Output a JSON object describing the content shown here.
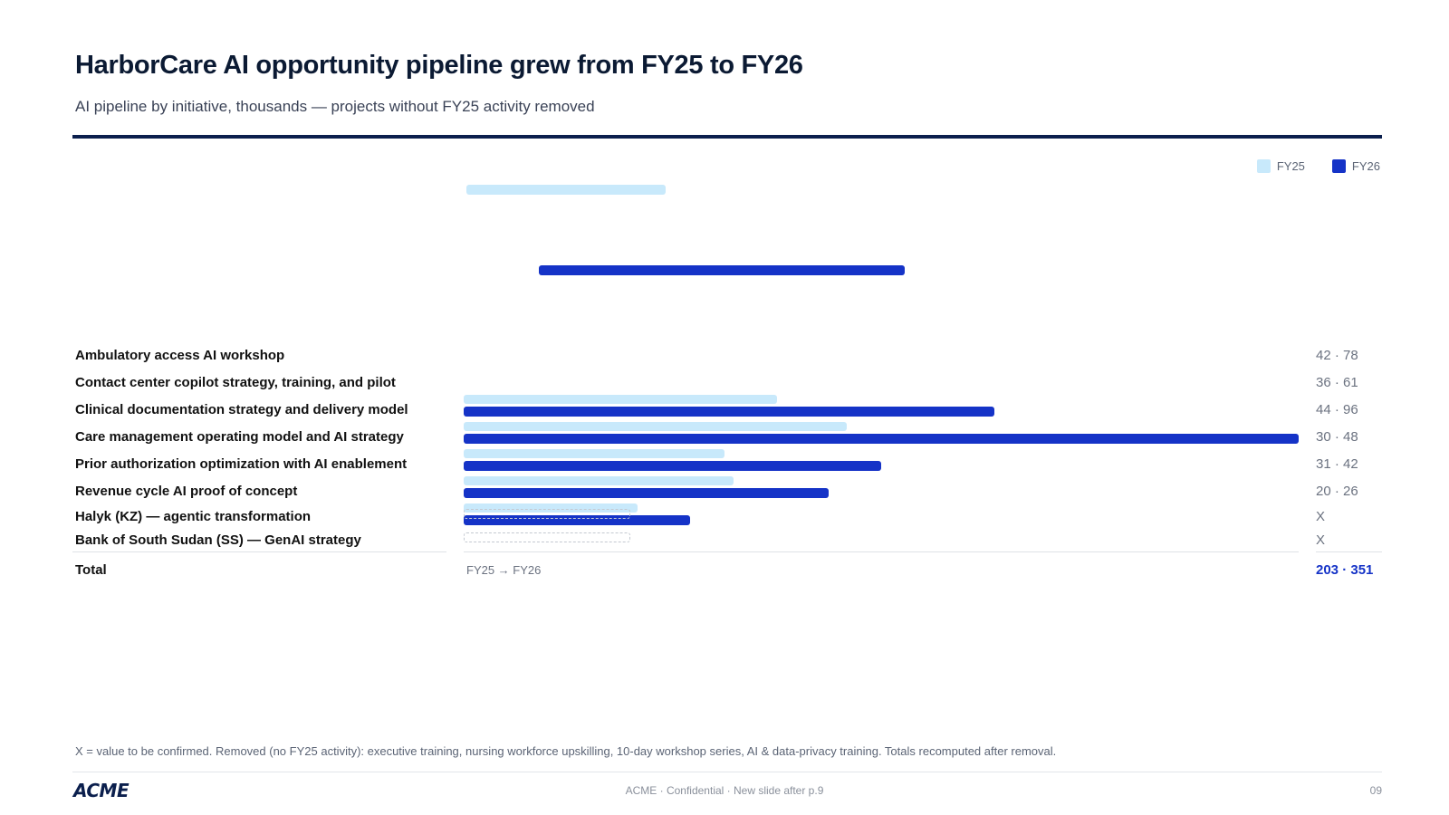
{
  "slide": {
    "title": "HarborCare AI opportunity pipeline grew from FY25 to FY26",
    "subtitle": "AI pipeline by initiative, thousands — projects without FY25 activity removed",
    "footnote": "X = value to be confirmed. Removed (no FY25 activity): executive training, nursing workforce upskilling, 10-day workshop series, AI & data-privacy training. Totals recomputed after removal.",
    "footer": "ACME · Confidential · New slide after p.9",
    "page_number": "09",
    "logo_text": "ACME"
  },
  "colors": {
    "fy25": "#c8e9fb",
    "fy26": "#1533c7",
    "rule": "#0b1f4d"
  },
  "chart_data": {
    "type": "bar",
    "orientation": "horizontal",
    "title": "HarborCare AI opportunity pipeline grew from FY25 to FY26",
    "subtitle": "AI pipeline by initiative, thousands — projects without FY25 activity removed",
    "legend": {
      "position": "top-right",
      "entries": [
        "FY25",
        "FY26"
      ]
    },
    "series_names": [
      "FY25",
      "FY26"
    ],
    "xlim": [
      0,
      96
    ],
    "grid": false,
    "unlabeled_bars": [
      {
        "series": "FY25",
        "start": 0.3,
        "end": 23.2
      },
      {
        "series": "FY26",
        "start": 8.6,
        "end": 50.7
      }
    ],
    "rows": [
      {
        "label": "Ambulatory access AI workshop",
        "fy25": 42,
        "fy26": 78,
        "value_text": "42 · 78",
        "bars_shown": false
      },
      {
        "label": "Contact center copilot strategy, training, and pilot",
        "fy25": 36,
        "fy26": 61,
        "value_text": "36 · 61",
        "bars_shown": true
      },
      {
        "label": "Clinical documentation strategy and delivery model",
        "fy25": 44,
        "fy26": 96,
        "value_text": "44 · 96",
        "bars_shown": true
      },
      {
        "label": "Care management operating model and AI strategy",
        "fy25": 30,
        "fy26": 48,
        "value_text": "30 · 48",
        "bars_shown": true
      },
      {
        "label": "Prior authorization optimization with AI enablement",
        "fy25": 31,
        "fy26": 42,
        "value_text": "31 · 42",
        "bars_shown": true
      },
      {
        "label": "Revenue cycle AI proof of concept",
        "fy25": 20,
        "fy26": 26,
        "value_text": "20 · 26",
        "bars_shown": true
      },
      {
        "label": "Halyk (KZ) — agentic transformation",
        "fy25": null,
        "fy26": null,
        "value_text": "X",
        "bars_shown": false
      },
      {
        "label": "Bank of South Sudan (SS) — GenAI strategy",
        "fy25": null,
        "fy26": null,
        "value_text": "X",
        "bars_shown": false
      }
    ],
    "total": {
      "label": "Total",
      "value_text": "203 · 351",
      "fy25": 203,
      "fy26": 351
    },
    "axis_caption": "FY25 → FY26"
  }
}
